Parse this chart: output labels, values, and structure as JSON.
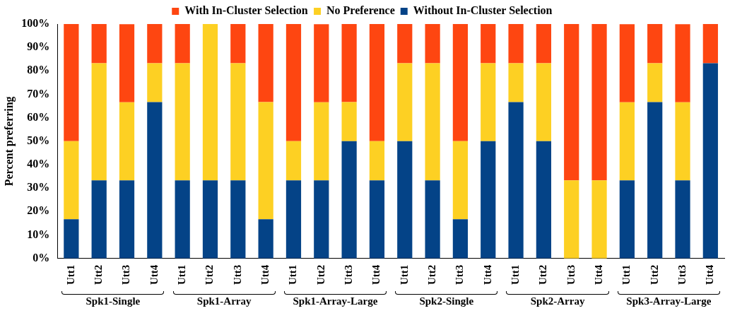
{
  "chart_data": {
    "type": "bar",
    "stacked": true,
    "ylabel": "Percent preferring",
    "categories": [
      "Utt1",
      "Utt2",
      "Utt3",
      "Utt4",
      "Utt1",
      "Utt2",
      "Utt3",
      "Utt4",
      "Utt1",
      "Utt2",
      "Utt3",
      "Utt4",
      "Utt1",
      "Utt2",
      "Utt3",
      "Utt4",
      "Utt1",
      "Utt2",
      "Utt3",
      "Utt4",
      "Utt1",
      "Utt2",
      "Utt3",
      "Utt4"
    ],
    "series": [
      {
        "name": "Without In-Cluster Selection",
        "color": "#044387",
        "values": [
          16.7,
          33.3,
          33.3,
          66.7,
          33.3,
          33.3,
          33.3,
          16.7,
          33.3,
          33.3,
          50,
          33.3,
          50,
          33.3,
          16.7,
          50,
          66.7,
          50,
          0,
          0,
          33.3,
          66.7,
          33.3,
          83.3
        ]
      },
      {
        "name": "No Preference",
        "color": "#fdd023",
        "values": [
          33.3,
          50,
          33.3,
          16.6,
          50,
          66.7,
          50,
          50,
          16.7,
          33.3,
          16.7,
          16.7,
          33.3,
          50,
          33.3,
          33.3,
          16.6,
          33.3,
          33.3,
          33.3,
          33.3,
          16.6,
          33.3,
          0
        ]
      },
      {
        "name": "With In-Cluster Selection",
        "color": "#fe4611",
        "values": [
          50,
          16.7,
          33.3,
          16.7,
          16.7,
          0,
          16.7,
          33.3,
          50,
          33.3,
          33.3,
          50,
          16.7,
          16.7,
          50,
          16.7,
          16.7,
          16.7,
          66.7,
          66.7,
          33.3,
          16.7,
          33.3,
          16.7
        ]
      }
    ],
    "ylim": [
      0,
      100
    ],
    "yticks": [
      {
        "value": 0,
        "label": "0%"
      },
      {
        "value": 10,
        "label": "10%"
      },
      {
        "value": 20,
        "label": "20%"
      },
      {
        "value": 30,
        "label": "30%"
      },
      {
        "value": 40,
        "label": "40%"
      },
      {
        "value": 50,
        "label": "50%"
      },
      {
        "value": 60,
        "label": "60%"
      },
      {
        "value": 70,
        "label": "70%"
      },
      {
        "value": 80,
        "label": "80%"
      },
      {
        "value": 90,
        "label": "90%"
      },
      {
        "value": 100,
        "label": "100%"
      }
    ],
    "annotations": [
      "Spk1-Single",
      "Spk1-Array",
      "Spk1-Array-Large",
      "Spk2-Single",
      "Spk2-Array",
      "Spk3-Array-Large"
    ],
    "legend": "top",
    "grid": false
  }
}
